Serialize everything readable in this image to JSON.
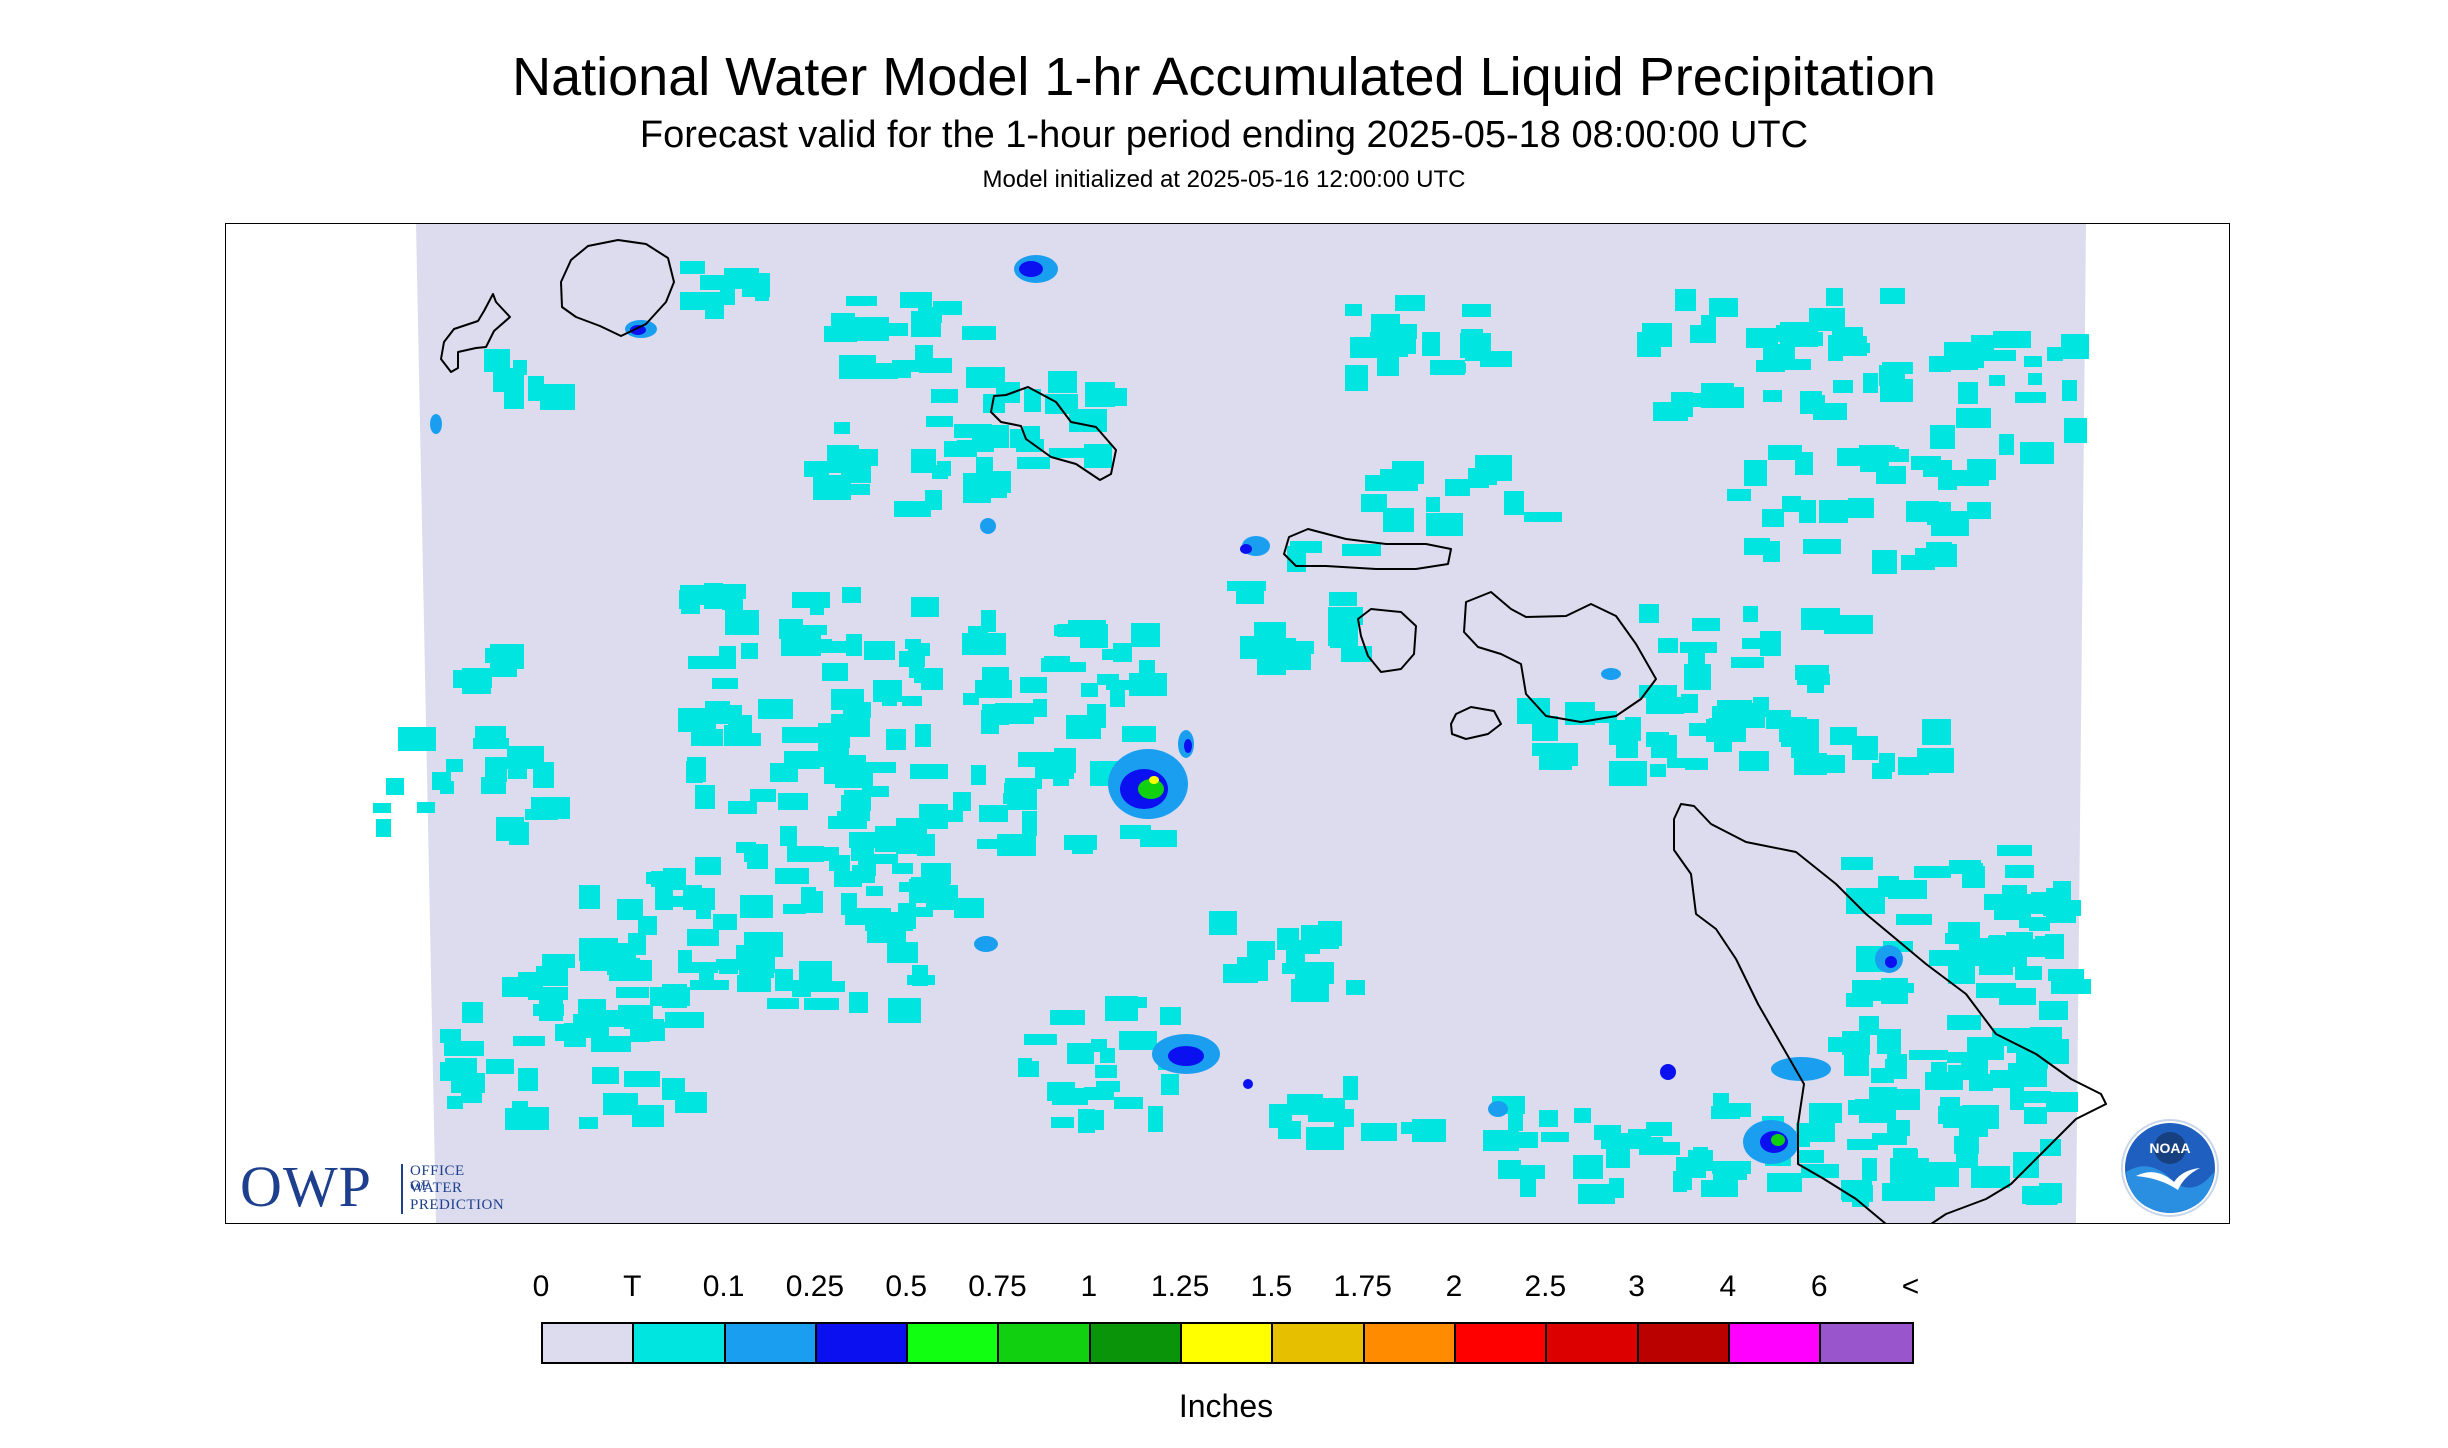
{
  "header": {
    "title": "National Water Model 1-hr Accumulated Liquid Precipitation",
    "subtitle": "Forecast valid for the 1-hour period ending 2025-05-18 08:00:00 UTC",
    "init": "Model initialized at 2025-05-16 12:00:00 UTC"
  },
  "logos": {
    "owp_abbrev": "OWP",
    "owp_line1": "OFFICE OF",
    "owp_line2": "WATER",
    "owp_line3": "PREDICTION",
    "noaa_text": "NOAA"
  },
  "legend": {
    "labels": [
      "0",
      "T",
      "0.1",
      "0.25",
      "0.5",
      "0.75",
      "1",
      "1.25",
      "1.5",
      "1.75",
      "2",
      "2.5",
      "3",
      "4",
      "6",
      "<"
    ],
    "colors": [
      "#dcdcee",
      "#00e5e0",
      "#1a9ff0",
      "#0a10f0",
      "#11ff11",
      "#10d010",
      "#0a940a",
      "#ffff00",
      "#e6c000",
      "#ff8c00",
      "#ff0000",
      "#dd0000",
      "#bb0000",
      "#ff00ff",
      "#9955cc"
    ],
    "unit": "Inches"
  },
  "map": {
    "background_color": "#dcdcee",
    "trace_color": "#00e5e0",
    "light_color": "#1a9ff0",
    "moderate_color": "#0a10f0",
    "heavy_color": "#10d010",
    "peak_color": "#ffff00"
  }
}
